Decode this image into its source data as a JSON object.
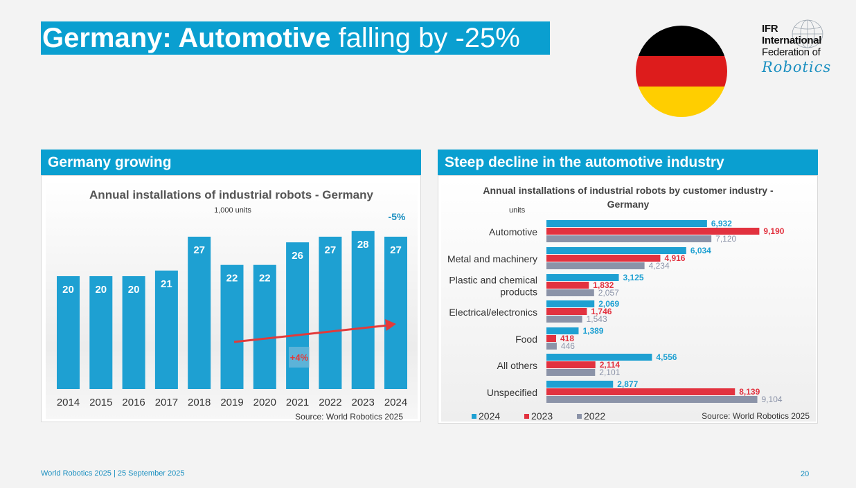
{
  "slide": {
    "title_bold": "Germany: Automotive",
    "title_rest": " falling by -25%"
  },
  "logo": {
    "line1": "IFR",
    "line2": "International",
    "line3": "Federation of",
    "line4": "Robotics"
  },
  "flag_colors": [
    "#000000",
    "#dd1c1c",
    "#ffce00"
  ],
  "left_panel": {
    "header": "Germany growing"
  },
  "right_panel": {
    "header": "Steep decline in the automotive industry"
  },
  "footer": {
    "left": "World Robotics 2025  | 25 September 2025",
    "page": "20"
  },
  "colors": {
    "accent": "#0a9fd0",
    "red": "#e2323f",
    "gray": "#8b93a8",
    "arrow": "#e23a3a"
  },
  "chart_data": [
    {
      "type": "bar",
      "title": "Annual installations of industrial robots - Germany",
      "subtitle": "1,000 units",
      "categories": [
        "2014",
        "2015",
        "2016",
        "2017",
        "2018",
        "2019",
        "2020",
        "2021",
        "2022",
        "2023",
        "2024"
      ],
      "values": [
        20,
        20,
        20,
        21,
        27,
        22,
        22,
        26,
        27,
        28,
        27
      ],
      "annotations": {
        "top_right": "-5%",
        "trend": "+4%"
      },
      "source": "Source: World Robotics 2025"
    },
    {
      "type": "bar",
      "orientation": "horizontal",
      "title": "Annual installations of industrial robots by customer industry - Germany",
      "unit_label": "units",
      "categories": [
        "Automotive",
        "Metal and machinery",
        "Plastic and chemical products",
        "Electrical/electronics",
        "Food",
        "All others",
        "Unspecified"
      ],
      "category_lines": [
        [
          "Automotive"
        ],
        [
          "Metal and machinery"
        ],
        [
          "Plastic and chemical",
          "products"
        ],
        [
          "Electrical/electronics"
        ],
        [
          "Food"
        ],
        [
          "All others"
        ],
        [
          "Unspecified"
        ]
      ],
      "series": [
        {
          "name": "2024",
          "color": "#1ea0d2",
          "values": [
            6932,
            6034,
            3125,
            2069,
            1389,
            4556,
            2877
          ],
          "labels": [
            "6,932",
            "6,034",
            "3,125",
            "2,069",
            "1,389",
            "4,556",
            "2,877"
          ]
        },
        {
          "name": "2023",
          "color": "#e2323f",
          "values": [
            9190,
            4916,
            1832,
            1746,
            418,
            2114,
            8139
          ],
          "labels": [
            "9,190",
            "4,916",
            "1,832",
            "1,746",
            "418",
            "2,114",
            "8,139"
          ]
        },
        {
          "name": "2022",
          "color": "#8b93a8",
          "values": [
            7120,
            4234,
            2057,
            1543,
            446,
            2101,
            9104
          ],
          "labels": [
            "7,120",
            "4,234",
            "2,057",
            "1,543",
            "446",
            "2,101",
            "9,104"
          ]
        }
      ],
      "legend_position": "bottom-left",
      "source": "Source: World Robotics 2025"
    }
  ]
}
